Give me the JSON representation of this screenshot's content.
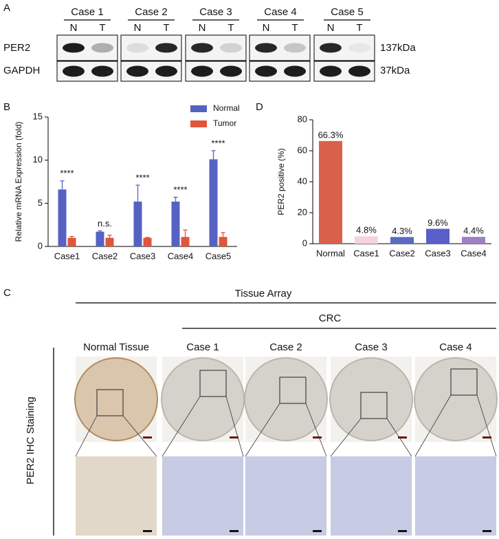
{
  "figure": {
    "panel_labels": [
      "A",
      "B",
      "C",
      "D"
    ],
    "blot": {
      "cases": [
        "Case 1",
        "Case 2",
        "Case 3",
        "Case 4",
        "Case 5"
      ],
      "lanes": [
        "N",
        "T"
      ],
      "proteins": [
        "PER2",
        "GAPDH"
      ],
      "sizes": [
        "137kDa",
        "37kDa"
      ]
    },
    "ihc": {
      "array_label": "Tissue Array",
      "group_label": "CRC",
      "columns": [
        "Normal Tissue",
        "Case 1",
        "Case 2",
        "Case 3",
        "Case 4"
      ],
      "row_label": "PER2 IHC Staining"
    }
  },
  "chart_data": [
    {
      "type": "bar",
      "ylabel": "Relative mRNA Expression (fold)",
      "categories": [
        "Case1",
        "Case2",
        "Case3",
        "Case4",
        "Case5"
      ],
      "series": [
        {
          "name": "Normal",
          "color": "#5662c2",
          "values": [
            6.6,
            1.7,
            5.2,
            5.2,
            10.1
          ],
          "errors": [
            1.0,
            0.1,
            1.9,
            0.5,
            1.0
          ]
        },
        {
          "name": "Tumor",
          "color": "#e0553b",
          "values": [
            1.0,
            1.0,
            1.0,
            1.1,
            1.1
          ],
          "errors": [
            0.15,
            0.3,
            0.05,
            0.8,
            0.5
          ]
        }
      ],
      "annotations": [
        "****",
        "n.s.",
        "****",
        "****",
        "****"
      ],
      "ylim": [
        0,
        15
      ],
      "yticks": [
        0,
        5,
        10,
        15
      ],
      "legend": "upper right"
    },
    {
      "type": "bar",
      "ylabel": "PER2 positive (%)",
      "categories": [
        "Normal",
        "Case1",
        "Case2",
        "Case3",
        "Case4"
      ],
      "values": [
        66.3,
        4.8,
        4.3,
        9.6,
        4.4
      ],
      "value_labels": [
        "66.3%",
        "4.8%",
        "4.3%",
        "9.6%",
        "4.4%"
      ],
      "colors": [
        "#d9614a",
        "#f6d3db",
        "#5b6bc4",
        "#5a5ec8",
        "#9d80c6"
      ],
      "ylim": [
        0,
        80
      ],
      "yticks": [
        0,
        20,
        40,
        60,
        80
      ]
    }
  ]
}
